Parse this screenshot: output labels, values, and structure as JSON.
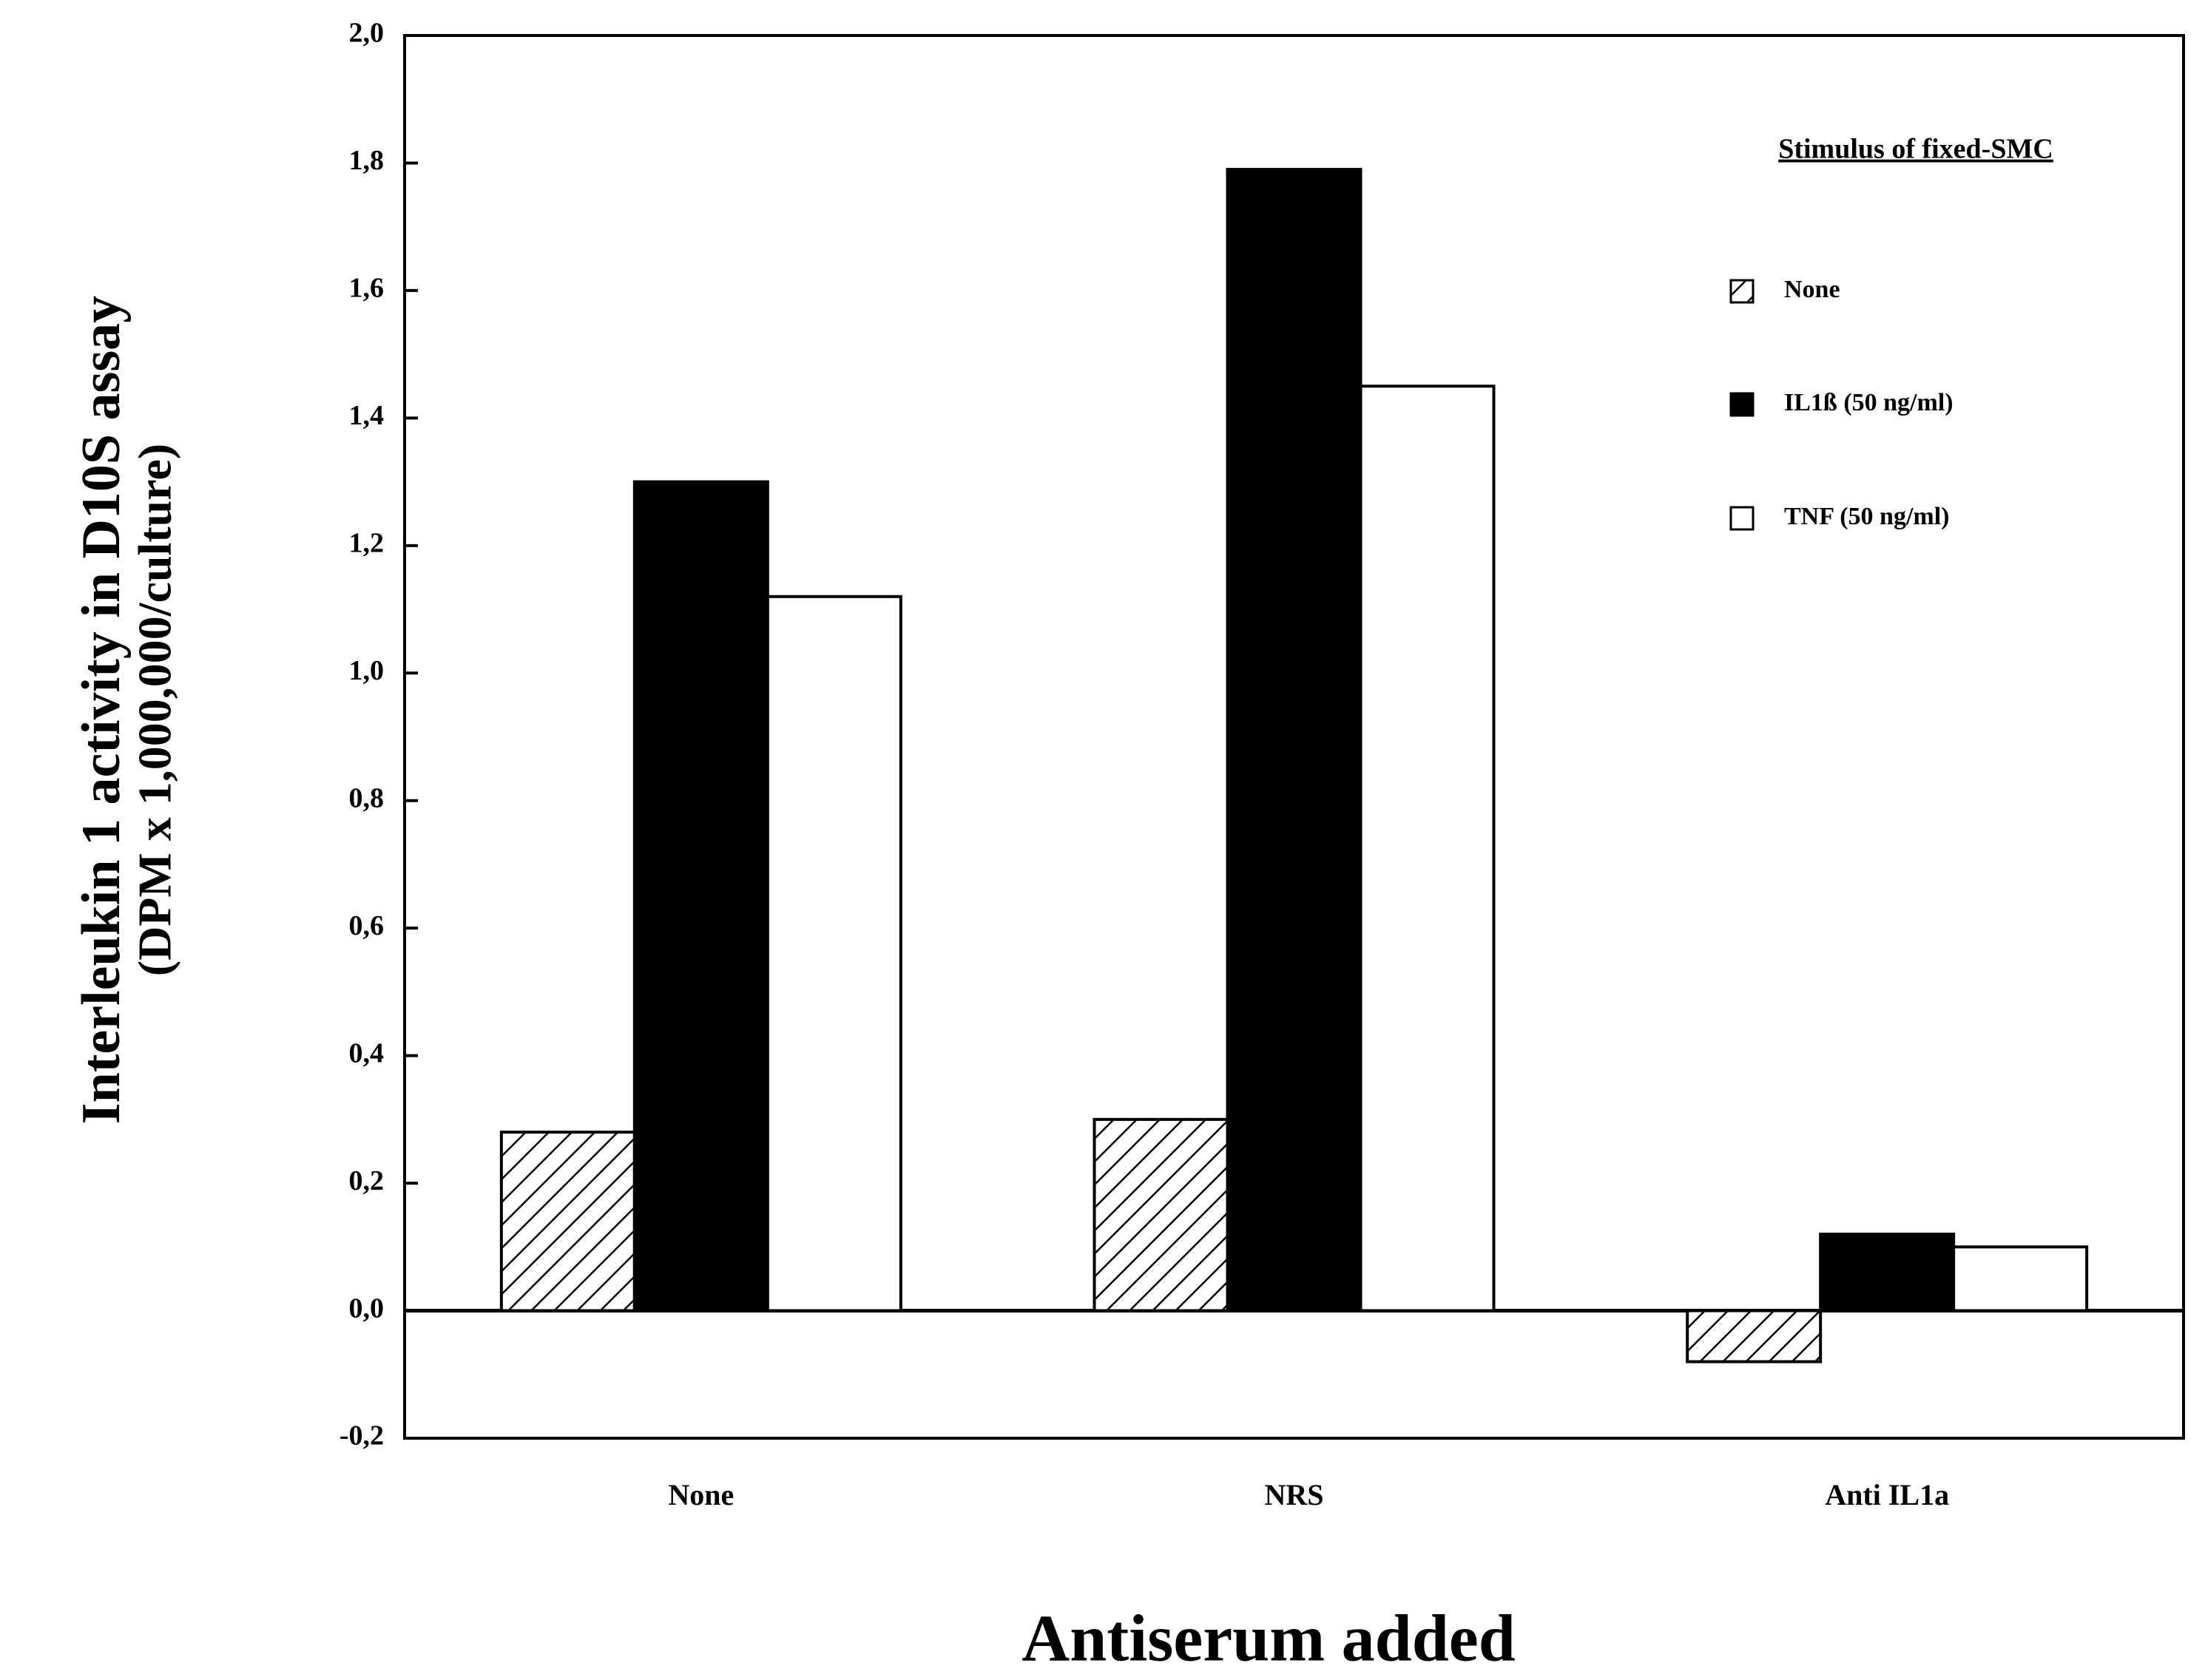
{
  "chart_data": {
    "type": "bar",
    "y_label": [
      "Interleukin 1 activity in D10S assay",
      "(DPM x 1,000,000/culture)"
    ],
    "x_label": "Antiserum added",
    "legend_title": "Stimulus of fixed-SMC",
    "legend_position": "upper right",
    "categories": [
      "None",
      "NRS",
      "Anti IL1a"
    ],
    "series": [
      {
        "name": "None",
        "color": "#000000",
        "hatch": true,
        "values": [
          0.28,
          0.3,
          -0.08
        ]
      },
      {
        "name": "IL1ß (50 ng/ml)",
        "color": "#000000",
        "hatch": false,
        "values": [
          1.3,
          1.79,
          0.12
        ]
      },
      {
        "name": "TNF (50 ng/ml)",
        "color": "#ffffff",
        "hatch": false,
        "values": [
          1.12,
          1.45,
          0.1
        ]
      }
    ],
    "ylim": [
      -0.2,
      2.0
    ],
    "yticks": [
      {
        "value": -0.2,
        "label": "-0,2"
      },
      {
        "value": 0,
        "label": "0,0"
      },
      {
        "value": 0.2,
        "label": "0,2"
      },
      {
        "value": 0.4,
        "label": "0,4"
      },
      {
        "value": 0.6,
        "label": "0,6"
      },
      {
        "value": 0.8,
        "label": "0,8"
      },
      {
        "value": 1.0,
        "label": "1,0"
      },
      {
        "value": 1.2,
        "label": "1,2"
      },
      {
        "value": 1.4,
        "label": "1,4"
      },
      {
        "value": 1.6,
        "label": "1,6"
      },
      {
        "value": 1.8,
        "label": "1,8"
      },
      {
        "value": 2.0,
        "label": "2,0"
      }
    ],
    "grid": false
  }
}
